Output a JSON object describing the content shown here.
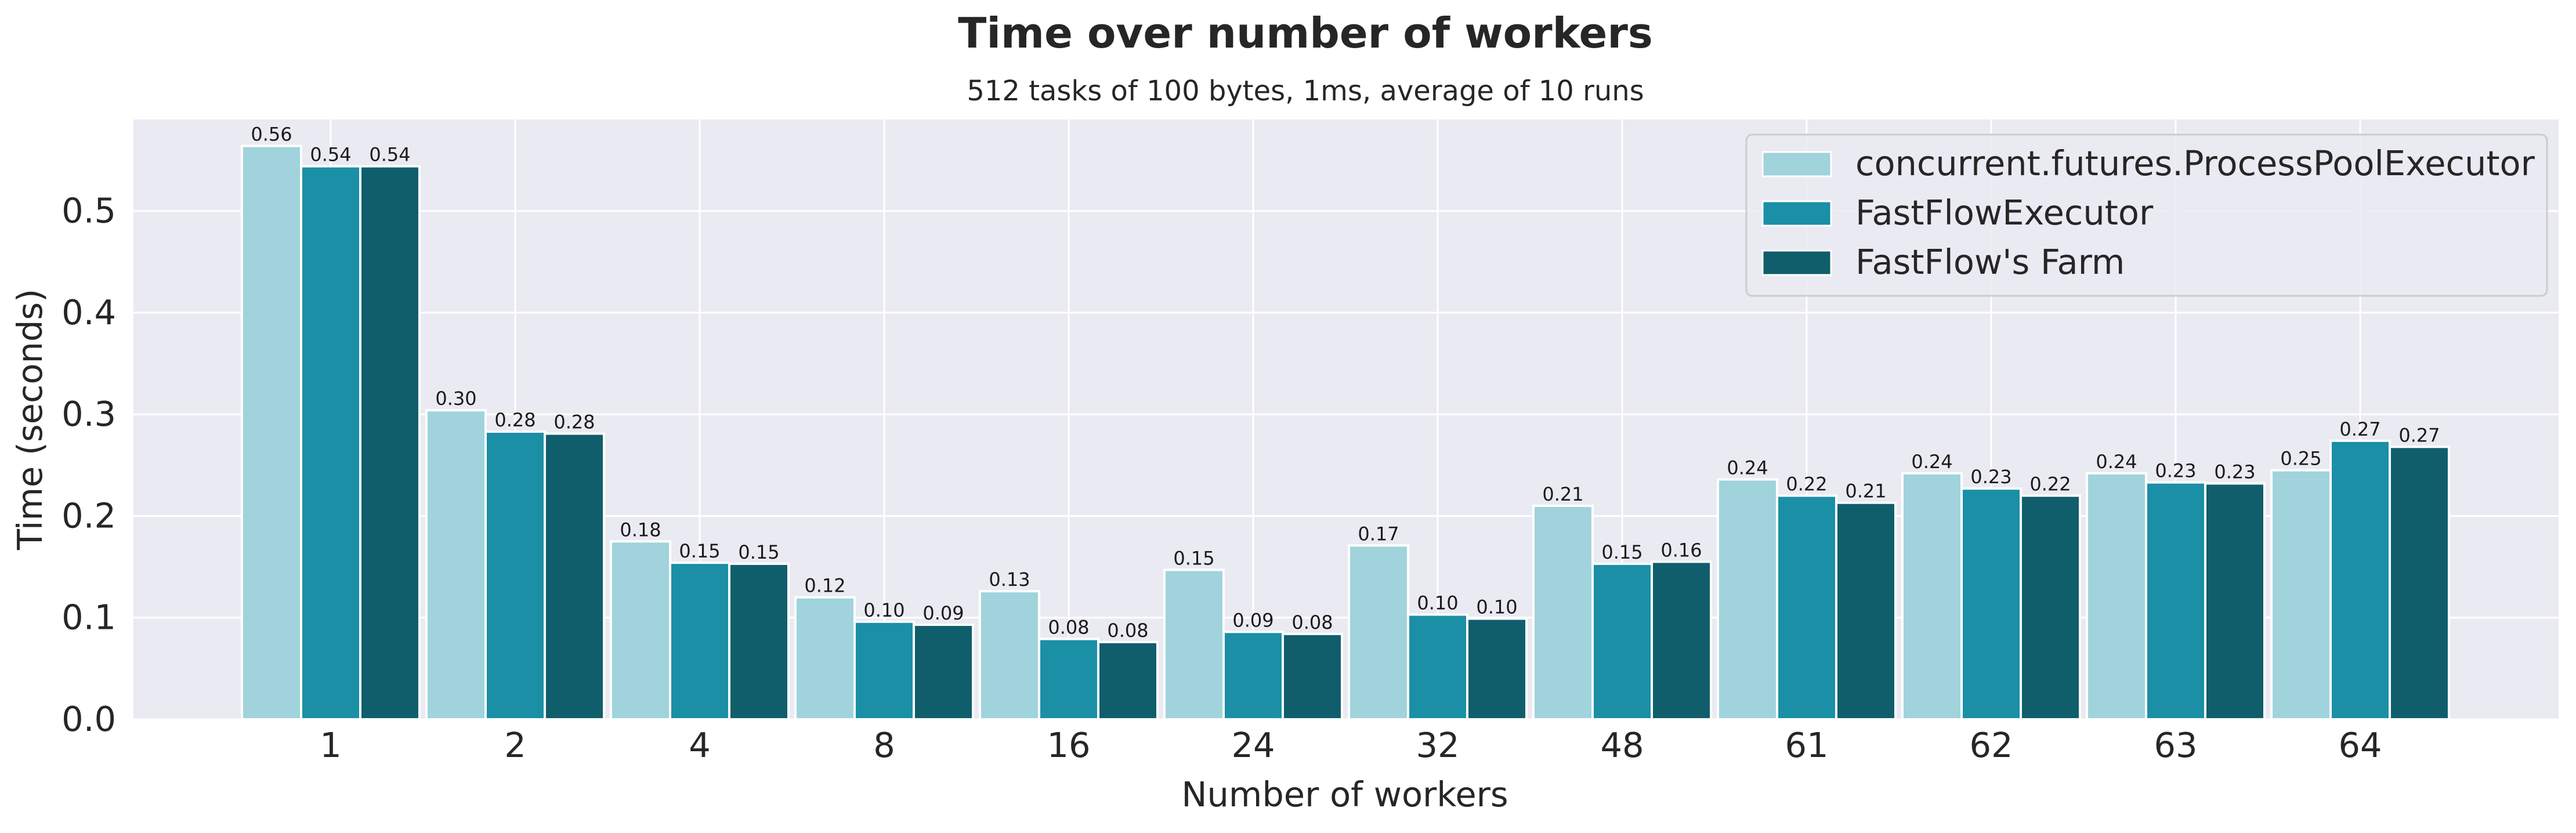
{
  "chart_data": {
    "type": "bar",
    "title": "Time over number of workers",
    "subtitle": "512 tasks of 100 bytes, 1ms, average of 10 runs",
    "xlabel": "Number of workers",
    "ylabel": "Time (seconds)",
    "ylim": [
      0,
      0.59
    ],
    "yticks": [
      "0.0",
      "0.1",
      "0.2",
      "0.3",
      "0.4",
      "0.5"
    ],
    "categories": [
      "1",
      "2",
      "4",
      "8",
      "16",
      "24",
      "32",
      "48",
      "61",
      "62",
      "63",
      "64"
    ],
    "grid": true,
    "legend_position": "top-right",
    "series": [
      {
        "name": "concurrent.futures.ProcessPoolExecutor",
        "color": "#a0d3dc",
        "values": [
          0.564,
          0.304,
          0.175,
          0.12,
          0.126,
          0.147,
          0.171,
          0.21,
          0.236,
          0.242,
          0.242,
          0.245
        ],
        "labels": [
          "0.56",
          "0.30",
          "0.18",
          "0.12",
          "0.13",
          "0.15",
          "0.17",
          "0.21",
          "0.24",
          "0.24",
          "0.24",
          "0.25"
        ]
      },
      {
        "name": "FastFlowExecutor",
        "color": "#1a8fa6",
        "values": [
          0.544,
          0.283,
          0.154,
          0.096,
          0.079,
          0.086,
          0.103,
          0.153,
          0.22,
          0.227,
          0.233,
          0.274
        ],
        "labels": [
          "0.54",
          "0.28",
          "0.15",
          "0.10",
          "0.08",
          "0.09",
          "0.10",
          "0.15",
          "0.22",
          "0.23",
          "0.23",
          "0.27"
        ]
      },
      {
        "name": "FastFlow's Farm",
        "color": "#105e6b",
        "values": [
          0.544,
          0.281,
          0.153,
          0.093,
          0.076,
          0.084,
          0.099,
          0.155,
          0.213,
          0.22,
          0.232,
          0.268
        ],
        "labels": [
          "0.54",
          "0.28",
          "0.15",
          "0.09",
          "0.08",
          "0.08",
          "0.10",
          "0.16",
          "0.21",
          "0.22",
          "0.23",
          "0.27"
        ]
      }
    ]
  }
}
